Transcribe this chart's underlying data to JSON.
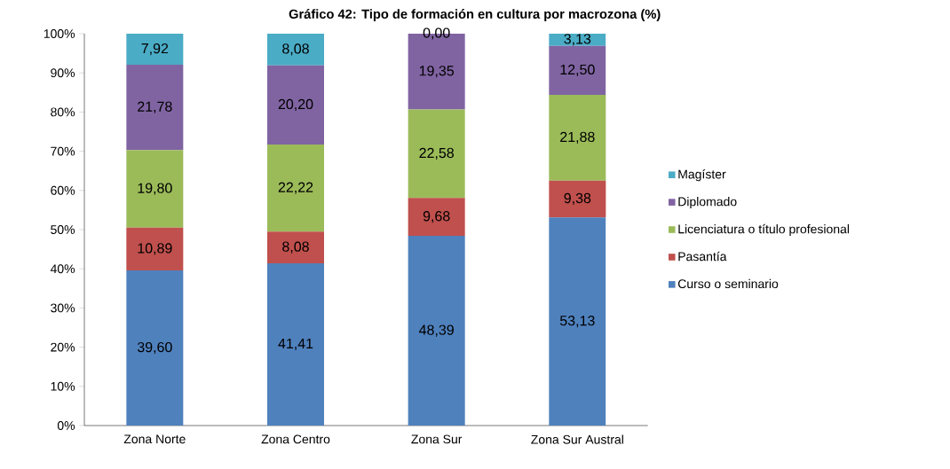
{
  "chart_data": {
    "type": "bar",
    "title": "Gráfico 42: Tipo de formación en cultura por macrozona (%)",
    "categories": [
      "Zona Norte",
      "Zona Centro",
      "Zona Sur",
      "Zona Sur Austral"
    ],
    "stacked": true,
    "legend": "right",
    "grid": false,
    "ylim": [
      0,
      100
    ],
    "yticks": [
      {
        "value": 0,
        "label": "0%"
      },
      {
        "value": 10,
        "label": "10%"
      },
      {
        "value": 20,
        "label": "20%"
      },
      {
        "value": 30,
        "label": "30%"
      },
      {
        "value": 40,
        "label": "40%"
      },
      {
        "value": 50,
        "label": "50%"
      },
      {
        "value": 60,
        "label": "60%"
      },
      {
        "value": 70,
        "label": "70%"
      },
      {
        "value": 80,
        "label": "80%"
      },
      {
        "value": 90,
        "label": "90%"
      },
      {
        "value": 100,
        "label": "100%"
      }
    ],
    "series": [
      {
        "name": "Curso o seminario",
        "color": "#4f81bd",
        "values": [
          39.6,
          41.41,
          48.39,
          53.13
        ],
        "value_labels": [
          "39,60",
          "41,41",
          "48,39",
          "53,13"
        ]
      },
      {
        "name": "Pasantía",
        "color": "#c0504d",
        "values": [
          10.89,
          8.08,
          9.68,
          9.38
        ],
        "value_labels": [
          "10,89",
          "8,08",
          "9,68",
          "9,38"
        ]
      },
      {
        "name": "Licenciatura o título profesional",
        "color": "#9bbb59",
        "values": [
          19.8,
          22.22,
          22.58,
          21.88
        ],
        "value_labels": [
          "19,80",
          "22,22",
          "22,58",
          "21,88"
        ]
      },
      {
        "name": "Diplomado",
        "color": "#8064a2",
        "values": [
          21.78,
          20.2,
          19.35,
          12.5
        ],
        "value_labels": [
          "21,78",
          "20,20",
          "19,35",
          "12,50"
        ]
      },
      {
        "name": "Magíster",
        "color": "#4bacc6",
        "values": [
          7.92,
          8.08,
          0.0,
          3.13
        ],
        "value_labels": [
          "7,92",
          "8,08",
          "0,00",
          "3,13"
        ]
      }
    ]
  }
}
